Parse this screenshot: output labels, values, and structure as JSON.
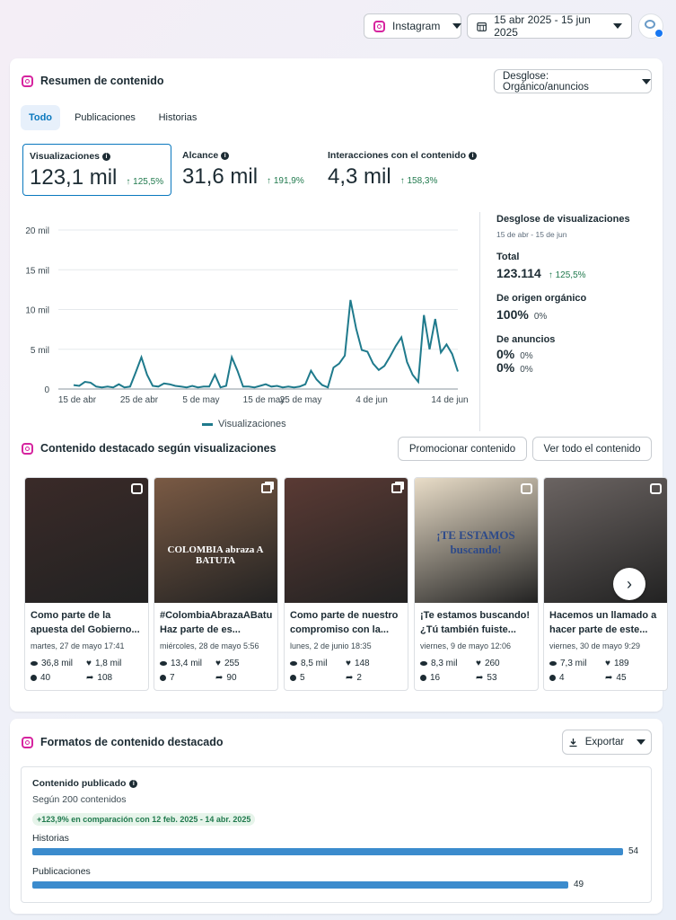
{
  "header": {
    "platform": "Instagram",
    "date_range": "15 abr 2025 - 15 jun 2025"
  },
  "summary": {
    "title": "Resumen de contenido",
    "breakdown_label": "Desglose: Orgánico/anuncios",
    "tabs": [
      "Todo",
      "Publicaciones",
      "Historias"
    ],
    "metrics": [
      {
        "label": "Visualizaciones",
        "value": "123,1 mil",
        "change": "125,5%"
      },
      {
        "label": "Alcance",
        "value": "31,6 mil",
        "change": "191,9%"
      },
      {
        "label": "Interacciones con el contenido",
        "value": "4,3 mil",
        "change": "158,3%"
      }
    ],
    "legend": "Visualizaciones",
    "side": {
      "title": "Desglose de visualizaciones",
      "subtitle": "15 de abr - 15 de jun",
      "total_label": "Total",
      "total_value": "123.114",
      "total_change": "125,5%",
      "organic_label": "De origen orgánico",
      "organic_value": "100%",
      "organic_pct": "0%",
      "ads_label": "De anuncios",
      "ads_value1": "0%",
      "ads_pct1": "0%",
      "ads_value2": "0%",
      "ads_pct2": "0%"
    }
  },
  "chart_data": {
    "type": "line",
    "ylabel": "",
    "xlabel": "",
    "y_ticks": [
      "20 mil",
      "15 mil",
      "10 mil",
      "5 mil",
      "0"
    ],
    "ylim": [
      0,
      20000
    ],
    "x_ticks": [
      "15 de abr",
      "25 de abr",
      "5 de may",
      "15 de may",
      "25 de may",
      "4 de jun",
      "14 de jun"
    ],
    "series": [
      {
        "name": "Visualizaciones",
        "color": "#1f7a8c",
        "values": [
          500,
          400,
          900,
          800,
          300,
          200,
          300,
          200,
          600,
          200,
          300,
          2100,
          4000,
          1800,
          400,
          300,
          700,
          600,
          400,
          300,
          200,
          400,
          200,
          300,
          300,
          1800,
          200,
          400,
          4000,
          2300,
          300,
          300,
          200,
          400,
          600,
          300,
          400,
          200,
          300,
          200,
          300,
          600,
          2300,
          1200,
          500,
          200,
          2700,
          3200,
          4200,
          11200,
          7600,
          4900,
          4700,
          3200,
          2400,
          2900,
          4100,
          5400,
          6500,
          3400,
          1800,
          900,
          9300,
          5000,
          8800,
          4600,
          5600,
          4400,
          2200
        ]
      }
    ]
  },
  "featured": {
    "title": "Contenido destacado según visualizaciones",
    "promote_label": "Promocionar contenido",
    "view_all_label": "Ver todo el contenido",
    "posts": [
      {
        "caption": "Como parte de la apuesta del Gobierno...",
        "date": "martes, 27 de mayo 17:41",
        "views": "36,8 mil",
        "likes": "1,8 mil",
        "comments": "40",
        "shares": "108",
        "bg": "#3a2a28",
        "type": "reel",
        "overlay": ""
      },
      {
        "caption": "#ColombiaAbrazaABatuta Haz parte de es...",
        "date": "miércoles, 28 de mayo 5:56",
        "views": "13,4 mil",
        "likes": "255",
        "comments": "7",
        "shares": "90",
        "bg": "#7a5a44",
        "type": "carousel",
        "overlay": "COLOMBIA abraza A BATUTA"
      },
      {
        "caption": "Como parte de nuestro compromiso con la...",
        "date": "lunes, 2 de junio 18:35",
        "views": "8,5 mil",
        "likes": "148",
        "comments": "5",
        "shares": "2",
        "bg": "#5a3a34",
        "type": "carousel",
        "overlay": ""
      },
      {
        "caption": "¡Te estamos buscando! ¿Tú también fuiste...",
        "date": "viernes, 9 de mayo 12:06",
        "views": "8,3 mil",
        "likes": "260",
        "comments": "16",
        "shares": "53",
        "bg": "#e9ddc8",
        "type": "reel",
        "overlay": "¡TE ESTAMOS buscando!"
      },
      {
        "caption": "Hacemos un llamado a hacer parte de este...",
        "date": "viernes, 30 de mayo 9:29",
        "views": "7,3 mil",
        "likes": "189",
        "comments": "4",
        "shares": "45",
        "bg": "#6b6462",
        "type": "reel",
        "overlay": ""
      }
    ]
  },
  "formats": {
    "title": "Formatos de contenido destacado",
    "export_label": "Exportar",
    "box_title": "Contenido publicado",
    "subtitle": "Según 200 contenidos",
    "comparison": "+123,9% en comparación con 12 feb. 2025 - 14 abr. 2025",
    "bars": [
      {
        "label": "Historias",
        "value": 54
      },
      {
        "label": "Publicaciones",
        "value": 49
      }
    ]
  },
  "colors": {
    "accent": "#0a78be",
    "positive": "#217a4e",
    "line": "#1f7a8c",
    "bar": "#3b8bcd"
  }
}
